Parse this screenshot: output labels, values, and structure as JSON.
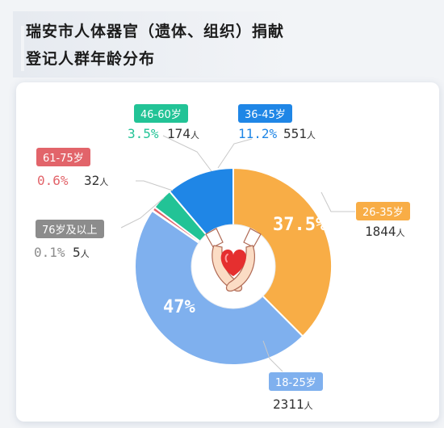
{
  "title": {
    "line1": "瑞安市人体器官（遗体、组织）捐献",
    "line2": "登记人群年龄分布"
  },
  "colors": {
    "18-25": "#7fb0ee",
    "26-35": "#f8ad46",
    "36-45": "#1f86e6",
    "46-60": "#22c396",
    "61-75": "#e2646a",
    "76+": "#8c8c8c"
  },
  "chart_data": {
    "type": "pie",
    "variant": "donut",
    "title": "瑞安市人体器官（遗体、组织）捐献登记人群年龄分布",
    "categories": [
      "18-25岁",
      "26-35岁",
      "36-45岁",
      "46-60岁",
      "61-75岁",
      "76岁及以上"
    ],
    "percent_labels": [
      "47%",
      "37.5%",
      "11.2%",
      "3.5%",
      "0.6%",
      "0.1%"
    ],
    "percents": [
      47,
      37.5,
      11.2,
      3.5,
      0.6,
      0.1
    ],
    "counts": [
      2311,
      1844,
      551,
      174,
      32,
      5
    ],
    "count_unit": "人",
    "center_icon": "hands-holding-heart-icon"
  }
}
